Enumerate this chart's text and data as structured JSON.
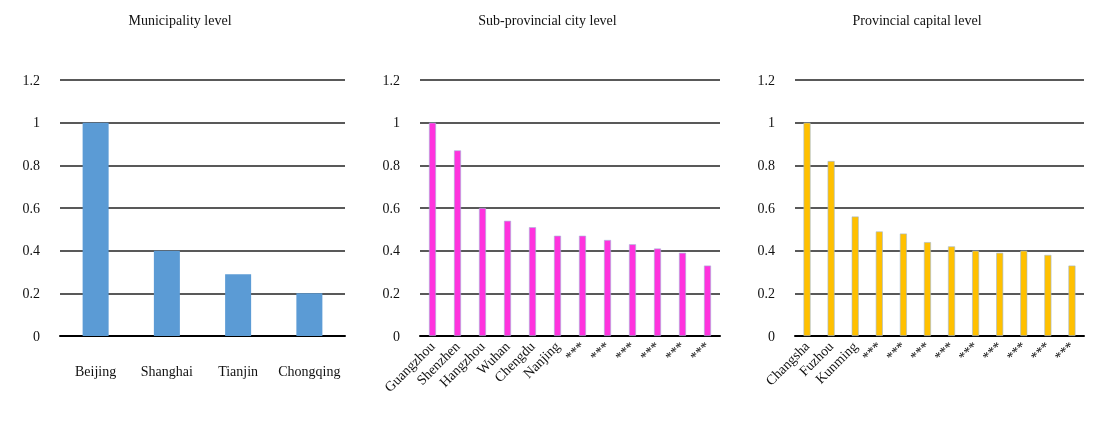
{
  "chart_data": [
    {
      "type": "bar",
      "title": "Municipality level",
      "categories": [
        "Beijing",
        "Shanghai",
        "Tianjin",
        "Chongqing"
      ],
      "series": [
        {
          "color": "#5b9bd5",
          "values": [
            1.0,
            0.4,
            0.29,
            0.2
          ]
        }
      ],
      "ylim": [
        0,
        1.2
      ],
      "yticks": [
        0,
        0.2,
        0.4,
        0.6,
        0.8,
        1,
        1.2
      ],
      "grid": "y"
    },
    {
      "type": "bar",
      "title": "Sub-provincial city level",
      "categories": [
        "Guangzhou",
        "Shenzhen",
        "Hangzhou",
        "Wuhan",
        "Chengdu",
        "Nanjing",
        "***",
        "***",
        "***",
        "***",
        "***",
        "***"
      ],
      "series": [
        {
          "color": "#ff33dd",
          "values": [
            1.0,
            0.87,
            0.6,
            0.54,
            0.51,
            0.47,
            0.47,
            0.45,
            0.43,
            0.41,
            0.39,
            0.33
          ]
        }
      ],
      "ylim": [
        0,
        1.2
      ],
      "yticks": [
        0,
        0.2,
        0.4,
        0.6,
        0.8,
        1,
        1.2
      ],
      "grid": "y"
    },
    {
      "type": "bar",
      "title": "Provincial capital level",
      "categories": [
        "Changsha",
        "Fuzhou",
        "Kunming",
        "***",
        "***",
        "***",
        "***",
        "***",
        "***",
        "***",
        "***",
        "***"
      ],
      "series": [
        {
          "color": "#ffc000",
          "values": [
            1.0,
            0.82,
            0.56,
            0.49,
            0.48,
            0.44,
            0.42,
            0.4,
            0.39,
            0.4,
            0.38,
            0.33
          ]
        }
      ],
      "ylim": [
        0,
        1.2
      ],
      "yticks": [
        0,
        0.2,
        0.4,
        0.6,
        0.8,
        1,
        1.2
      ],
      "grid": "y"
    }
  ]
}
